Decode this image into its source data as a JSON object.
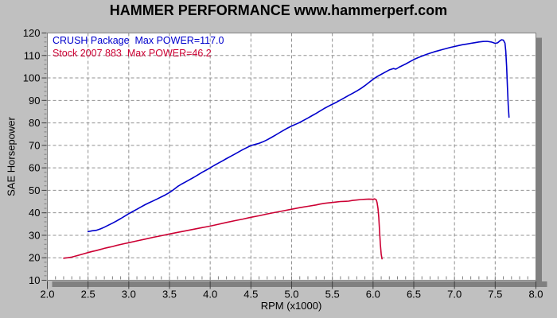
{
  "title": "HAMMER PERFORMANCE www.hammerperf.com",
  "colors": {
    "background": "#c0c0c0",
    "plot_bg": "#ffffff",
    "grid": "#909090",
    "shadow": "#808080",
    "border": "#808080",
    "tick": "#404040",
    "minor_tick": "#808080",
    "text": "#000000"
  },
  "chart_data": {
    "type": "line",
    "title": "HAMMER PERFORMANCE www.hammerperf.com",
    "xlabel": "RPM (x1000)",
    "ylabel": "SAE Horsepower",
    "xlim": [
      2.0,
      8.0
    ],
    "ylim": [
      10,
      120
    ],
    "x_ticks": [
      2.0,
      2.5,
      3.0,
      3.5,
      4.0,
      4.5,
      5.0,
      5.5,
      6.0,
      6.5,
      7.0,
      7.5,
      8.0
    ],
    "x_tick_labels": [
      "2.0",
      "2.5",
      "3.0",
      "3.5",
      "4.0",
      "4.5",
      "5.0",
      "5.5",
      "6.0",
      "6.5",
      "7.0",
      "7.5",
      "8.0"
    ],
    "y_ticks": [
      10,
      20,
      30,
      40,
      50,
      60,
      70,
      80,
      90,
      100,
      110,
      120
    ],
    "y_tick_labels": [
      "10",
      "20",
      "30",
      "40",
      "50",
      "60",
      "70",
      "80",
      "90",
      "100",
      "110",
      "120"
    ],
    "x_minor_step": 0.1,
    "y_minor_step": 2,
    "grid": "dashed",
    "legend_position": "top-left-inside",
    "series": [
      {
        "name": "CRUSH Package",
        "legend": "CRUSH Package  Max POWER=117.0",
        "max_power": 117.0,
        "color": "#0000cc",
        "points": [
          [
            2.5,
            31.6
          ],
          [
            2.55,
            32.0
          ],
          [
            2.6,
            32.2
          ],
          [
            2.65,
            32.8
          ],
          [
            2.7,
            33.6
          ],
          [
            2.75,
            34.5
          ],
          [
            2.8,
            35.4
          ],
          [
            2.85,
            36.4
          ],
          [
            2.9,
            37.4
          ],
          [
            2.95,
            38.5
          ],
          [
            3.0,
            39.6
          ],
          [
            3.05,
            40.6
          ],
          [
            3.1,
            41.6
          ],
          [
            3.15,
            42.6
          ],
          [
            3.2,
            43.6
          ],
          [
            3.25,
            44.5
          ],
          [
            3.3,
            45.3
          ],
          [
            3.35,
            46.2
          ],
          [
            3.4,
            47.1
          ],
          [
            3.45,
            48.0
          ],
          [
            3.5,
            49.0
          ],
          [
            3.55,
            50.3
          ],
          [
            3.6,
            51.7
          ],
          [
            3.65,
            52.8
          ],
          [
            3.7,
            53.8
          ],
          [
            3.75,
            54.8
          ],
          [
            3.8,
            55.8
          ],
          [
            3.85,
            56.9
          ],
          [
            3.9,
            58.0
          ],
          [
            3.95,
            59.0
          ],
          [
            4.0,
            60.0
          ],
          [
            4.05,
            61.1
          ],
          [
            4.1,
            62.1
          ],
          [
            4.15,
            63.1
          ],
          [
            4.2,
            64.1
          ],
          [
            4.25,
            65.1
          ],
          [
            4.3,
            66.1
          ],
          [
            4.35,
            67.1
          ],
          [
            4.4,
            68.1
          ],
          [
            4.45,
            69.0
          ],
          [
            4.5,
            69.9
          ],
          [
            4.55,
            70.4
          ],
          [
            4.6,
            70.9
          ],
          [
            4.65,
            71.6
          ],
          [
            4.7,
            72.5
          ],
          [
            4.75,
            73.5
          ],
          [
            4.8,
            74.5
          ],
          [
            4.85,
            75.6
          ],
          [
            4.9,
            76.7
          ],
          [
            4.95,
            77.7
          ],
          [
            5.0,
            78.6
          ],
          [
            5.05,
            79.4
          ],
          [
            5.1,
            80.2
          ],
          [
            5.15,
            81.2
          ],
          [
            5.2,
            82.2
          ],
          [
            5.25,
            83.2
          ],
          [
            5.3,
            84.2
          ],
          [
            5.35,
            85.3
          ],
          [
            5.4,
            86.4
          ],
          [
            5.45,
            87.4
          ],
          [
            5.5,
            88.3
          ],
          [
            5.55,
            89.2
          ],
          [
            5.6,
            90.2
          ],
          [
            5.65,
            91.2
          ],
          [
            5.7,
            92.2
          ],
          [
            5.75,
            93.2
          ],
          [
            5.8,
            94.2
          ],
          [
            5.85,
            95.3
          ],
          [
            5.9,
            96.6
          ],
          [
            5.95,
            98.0
          ],
          [
            6.0,
            99.4
          ],
          [
            6.05,
            100.6
          ],
          [
            6.1,
            101.6
          ],
          [
            6.15,
            102.6
          ],
          [
            6.2,
            103.6
          ],
          [
            6.25,
            104.2
          ],
          [
            6.28,
            103.9
          ],
          [
            6.32,
            104.8
          ],
          [
            6.4,
            106.2
          ],
          [
            6.45,
            107.2
          ],
          [
            6.5,
            108.2
          ],
          [
            6.55,
            109.0
          ],
          [
            6.6,
            109.7
          ],
          [
            6.65,
            110.4
          ],
          [
            6.7,
            111.0
          ],
          [
            6.75,
            111.6
          ],
          [
            6.8,
            112.1
          ],
          [
            6.85,
            112.6
          ],
          [
            6.9,
            113.1
          ],
          [
            6.95,
            113.6
          ],
          [
            7.0,
            114.0
          ],
          [
            7.05,
            114.4
          ],
          [
            7.1,
            114.8
          ],
          [
            7.15,
            115.1
          ],
          [
            7.2,
            115.4
          ],
          [
            7.25,
            115.7
          ],
          [
            7.3,
            116.0
          ],
          [
            7.35,
            116.2
          ],
          [
            7.4,
            116.3
          ],
          [
            7.45,
            116.0
          ],
          [
            7.5,
            115.4
          ],
          [
            7.53,
            115.6
          ],
          [
            7.56,
            116.6
          ],
          [
            7.58,
            117.0
          ],
          [
            7.6,
            116.8
          ],
          [
            7.62,
            115.5
          ],
          [
            7.63,
            112.0
          ],
          [
            7.64,
            105.0
          ],
          [
            7.65,
            96.0
          ],
          [
            7.66,
            88.0
          ],
          [
            7.67,
            82.5
          ]
        ]
      },
      {
        "name": "Stock 2007 883",
        "legend": "Stock 2007 883  Max POWER=46.2",
        "max_power": 46.2,
        "color": "#cc0033",
        "points": [
          [
            2.2,
            19.8
          ],
          [
            2.25,
            20.0
          ],
          [
            2.3,
            20.3
          ],
          [
            2.35,
            20.8
          ],
          [
            2.4,
            21.3
          ],
          [
            2.45,
            21.8
          ],
          [
            2.5,
            22.3
          ],
          [
            2.55,
            22.8
          ],
          [
            2.6,
            23.2
          ],
          [
            2.65,
            23.7
          ],
          [
            2.7,
            24.2
          ],
          [
            2.75,
            24.6
          ],
          [
            2.8,
            25.0
          ],
          [
            2.85,
            25.5
          ],
          [
            2.9,
            25.9
          ],
          [
            2.95,
            26.3
          ],
          [
            3.0,
            26.7
          ],
          [
            3.1,
            27.5
          ],
          [
            3.2,
            28.3
          ],
          [
            3.3,
            29.1
          ],
          [
            3.4,
            29.8
          ],
          [
            3.5,
            30.6
          ],
          [
            3.6,
            31.3
          ],
          [
            3.7,
            32.0
          ],
          [
            3.8,
            32.7
          ],
          [
            3.9,
            33.4
          ],
          [
            4.0,
            34.1
          ],
          [
            4.1,
            34.9
          ],
          [
            4.2,
            35.7
          ],
          [
            4.3,
            36.5
          ],
          [
            4.4,
            37.2
          ],
          [
            4.5,
            38.0
          ],
          [
            4.6,
            38.7
          ],
          [
            4.7,
            39.5
          ],
          [
            4.8,
            40.2
          ],
          [
            4.9,
            40.9
          ],
          [
            5.0,
            41.6
          ],
          [
            5.1,
            42.3
          ],
          [
            5.2,
            42.9
          ],
          [
            5.3,
            43.5
          ],
          [
            5.35,
            43.9
          ],
          [
            5.4,
            44.2
          ],
          [
            5.45,
            44.4
          ],
          [
            5.5,
            44.6
          ],
          [
            5.55,
            44.8
          ],
          [
            5.6,
            45.0
          ],
          [
            5.65,
            45.1
          ],
          [
            5.7,
            45.2
          ],
          [
            5.75,
            45.5
          ],
          [
            5.8,
            45.7
          ],
          [
            5.85,
            45.9
          ],
          [
            5.9,
            46.0
          ],
          [
            5.95,
            46.1
          ],
          [
            6.0,
            46.0
          ],
          [
            6.02,
            46.2
          ],
          [
            6.04,
            45.8
          ],
          [
            6.05,
            44.5
          ],
          [
            6.06,
            42.0
          ],
          [
            6.07,
            38.0
          ],
          [
            6.08,
            32.0
          ],
          [
            6.09,
            26.0
          ],
          [
            6.1,
            21.5
          ],
          [
            6.11,
            19.5
          ]
        ]
      }
    ]
  }
}
